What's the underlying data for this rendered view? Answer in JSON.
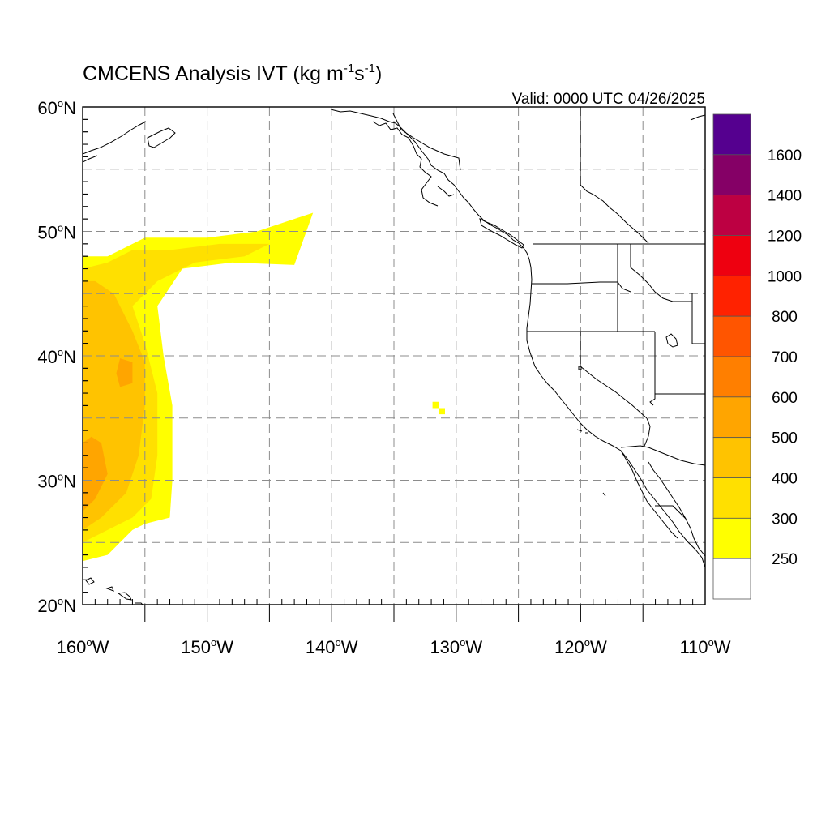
{
  "title": {
    "main": "CMCENS Analysis IVT (kg m",
    "exp1": "-1",
    "mid": "s",
    "exp2": "-1",
    "end": ")"
  },
  "valid": "Valid: 0000 UTC 04/26/2025",
  "map_extent": {
    "lon": [
      -160,
      -110
    ],
    "lat": [
      20,
      60
    ]
  },
  "lat_ticks": [
    {
      "value": 60,
      "label": "60",
      "hemi": "N"
    },
    {
      "value": 50,
      "label": "50",
      "hemi": "N"
    },
    {
      "value": 40,
      "label": "40",
      "hemi": "N"
    },
    {
      "value": 30,
      "label": "30",
      "hemi": "N"
    },
    {
      "value": 20,
      "label": "20",
      "hemi": "N"
    }
  ],
  "lon_ticks": [
    {
      "value": -160,
      "label": "160",
      "hemi": "W"
    },
    {
      "value": -150,
      "label": "150",
      "hemi": "W"
    },
    {
      "value": -140,
      "label": "140",
      "hemi": "W"
    },
    {
      "value": -130,
      "label": "130",
      "hemi": "W"
    },
    {
      "value": -120,
      "label": "120",
      "hemi": "W"
    },
    {
      "value": -110,
      "label": "110",
      "hemi": "W"
    }
  ],
  "colorbar": {
    "levels": [
      {
        "label": "1600",
        "color": "#55008f"
      },
      {
        "label": "1400",
        "color": "#850066"
      },
      {
        "label": "1200",
        "color": "#bd0042"
      },
      {
        "label": "1000",
        "color": "#ee0010"
      },
      {
        "label": "800",
        "color": "#ff2200"
      },
      {
        "label": "700",
        "color": "#ff5500"
      },
      {
        "label": "600",
        "color": "#ff7f00"
      },
      {
        "label": "500",
        "color": "#ffa500"
      },
      {
        "label": "400",
        "color": "#ffc300"
      },
      {
        "label": "300",
        "color": "#ffe000"
      },
      {
        "label": "250",
        "color": "#ffff00"
      },
      {
        "label": "",
        "color": "#ffffff"
      }
    ]
  },
  "ivt_field": [
    {
      "label": "250-300",
      "color": "#ffff00",
      "polygon": [
        [
          -160,
          23.5
        ],
        [
          -158,
          24
        ],
        [
          -156,
          26
        ],
        [
          -155,
          26.5
        ],
        [
          -153,
          27
        ],
        [
          -152.8,
          30
        ],
        [
          -152.8,
          36
        ],
        [
          -153.5,
          40
        ],
        [
          -154,
          44
        ],
        [
          -152,
          47
        ],
        [
          -148,
          47.5
        ],
        [
          -143,
          47.3
        ],
        [
          -141.5,
          51.5
        ],
        [
          -143,
          51
        ],
        [
          -146,
          50
        ],
        [
          -150,
          49.5
        ],
        [
          -155,
          49.5
        ],
        [
          -158,
          48
        ],
        [
          -160,
          48
        ]
      ]
    },
    {
      "label": "300-400",
      "color": "#ffe000",
      "polygon": [
        [
          -160,
          25
        ],
        [
          -158,
          26
        ],
        [
          -156,
          27
        ],
        [
          -154.5,
          28.5
        ],
        [
          -154,
          32
        ],
        [
          -154,
          37
        ],
        [
          -155,
          41
        ],
        [
          -156,
          44
        ],
        [
          -154,
          46
        ],
        [
          -151,
          47.5
        ],
        [
          -147,
          48
        ],
        [
          -145,
          49
        ],
        [
          -149,
          49
        ],
        [
          -153,
          48.5
        ],
        [
          -156,
          48.5
        ],
        [
          -158,
          47.5
        ],
        [
          -160,
          47
        ]
      ]
    },
    {
      "label": "400-500",
      "color": "#ffc300",
      "polygon": [
        [
          -160,
          26
        ],
        [
          -158.5,
          27
        ],
        [
          -156.5,
          29
        ],
        [
          -155.5,
          32
        ],
        [
          -155,
          36
        ],
        [
          -155,
          39.5
        ],
        [
          -156,
          42
        ],
        [
          -157.5,
          45
        ],
        [
          -159,
          46
        ],
        [
          -160,
          46
        ]
      ]
    },
    {
      "label": "500-600",
      "color": "#ffa500",
      "polygon": [
        [
          -160,
          27.5
        ],
        [
          -159,
          28.5
        ],
        [
          -158,
          30.5
        ],
        [
          -158.5,
          33
        ],
        [
          -159.3,
          33.5
        ],
        [
          -160,
          33
        ]
      ]
    },
    {
      "label": "500-600",
      "color": "#ffa500",
      "polygon": [
        [
          -157,
          37.5
        ],
        [
          -156,
          37.8
        ],
        [
          -156,
          39.5
        ],
        [
          -157,
          39.8
        ],
        [
          -157.3,
          38.6
        ]
      ]
    },
    {
      "label": "250-300",
      "color": "#ffff00",
      "polygon": [
        [
          -131.9,
          36.3
        ],
        [
          -131.4,
          36.3
        ],
        [
          -131.4,
          35.8
        ],
        [
          -130.9,
          35.8
        ],
        [
          -130.9,
          35.3
        ],
        [
          -131.4,
          35.3
        ],
        [
          -131.4,
          35.8
        ],
        [
          -131.9,
          35.8
        ]
      ]
    },
    {
      "label": "250-300",
      "color": "#ffff00",
      "polygon": [
        [
          -153.5,
          27.2
        ],
        [
          -153,
          27.2
        ],
        [
          -153,
          27.7
        ],
        [
          -153.5,
          27.7
        ]
      ]
    }
  ]
}
